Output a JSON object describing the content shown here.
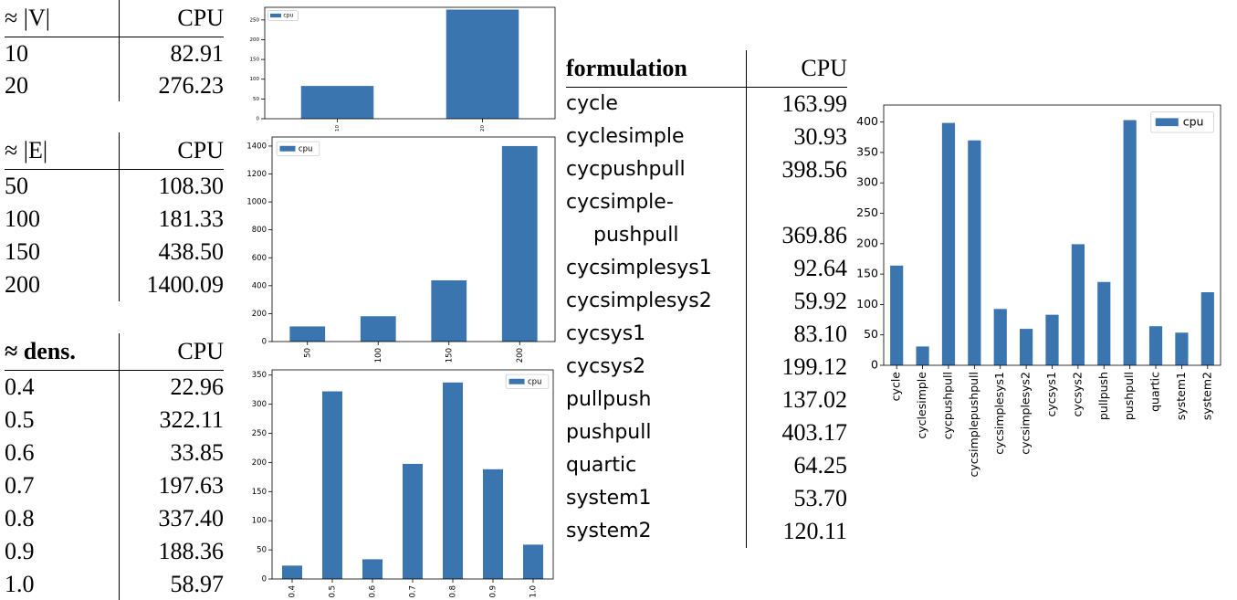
{
  "tables": [
    {
      "header": [
        "≈ |V|",
        "CPU"
      ],
      "rows": [
        [
          "10",
          "82.91"
        ],
        [
          "20",
          "276.23"
        ]
      ]
    },
    {
      "header": [
        "≈ |E|",
        "CPU"
      ],
      "rows": [
        [
          "50",
          "108.30"
        ],
        [
          "100",
          "181.33"
        ],
        [
          "150",
          "438.50"
        ],
        [
          "200",
          "1400.09"
        ]
      ]
    },
    {
      "header": [
        "≈ dens.",
        "CPU"
      ],
      "rows": [
        [
          "0.4",
          "22.96"
        ],
        [
          "0.5",
          "322.11"
        ],
        [
          "0.6",
          "33.85"
        ],
        [
          "0.7",
          "197.63"
        ],
        [
          "0.8",
          "337.40"
        ],
        [
          "0.9",
          "188.36"
        ],
        [
          "1.0",
          "58.97"
        ]
      ]
    },
    {
      "header": [
        "formulation",
        "CPU"
      ],
      "rows": [
        [
          "cycle",
          "163.99"
        ],
        [
          "cyclesimple",
          "30.93"
        ],
        [
          "cycpushpull",
          "398.56"
        ],
        [
          "cycsimple-pushpull",
          "369.86"
        ],
        [
          "cycsimplesys1",
          "92.64"
        ],
        [
          "cycsimplesys2",
          "59.92"
        ],
        [
          "cycsys1",
          "83.10"
        ],
        [
          "cycsys2",
          "199.12"
        ],
        [
          "pullpush",
          "137.02"
        ],
        [
          "pushpull",
          "403.17"
        ],
        [
          "quartic",
          "64.25"
        ],
        [
          "system1",
          "53.70"
        ],
        [
          "system2",
          "120.11"
        ]
      ]
    }
  ],
  "chart_data": [
    {
      "type": "bar",
      "categories": [
        "10",
        "20"
      ],
      "series": [
        {
          "name": "cpu",
          "color": "#3b75af",
          "values": [
            82.91,
            276.23
          ]
        }
      ],
      "ylim": [
        0,
        282
      ],
      "yticks": [
        0,
        50,
        100,
        150,
        200,
        250
      ],
      "legend": "upper left"
    },
    {
      "type": "bar",
      "categories": [
        "50",
        "100",
        "150",
        "200"
      ],
      "series": [
        {
          "name": "cpu",
          "color": "#3b75af",
          "values": [
            108.3,
            181.33,
            438.5,
            1400.09
          ]
        }
      ],
      "ylim": [
        0,
        1465
      ],
      "yticks": [
        0,
        200,
        400,
        600,
        800,
        1000,
        1200,
        1400
      ],
      "legend": "upper left"
    },
    {
      "type": "bar",
      "categories": [
        "0.4",
        "0.5",
        "0.6",
        "0.7",
        "0.8",
        "0.9",
        "1.0"
      ],
      "series": [
        {
          "name": "cpu",
          "color": "#3b75af",
          "values": [
            22.96,
            322.11,
            33.85,
            197.63,
            337.4,
            188.36,
            58.97
          ]
        }
      ],
      "ylim": [
        0,
        359
      ],
      "yticks": [
        0,
        50,
        100,
        150,
        200,
        250,
        300,
        350
      ],
      "legend": "upper right"
    },
    {
      "type": "bar",
      "categories": [
        "cycle",
        "cyclesimple",
        "cycpushpull",
        "cycsimplepushpull",
        "cycsimplesys1",
        "cycsimplesys2",
        "cycsys1",
        "cycsys2",
        "pullpush",
        "pushpull",
        "quartic",
        "system1",
        "system2"
      ],
      "series": [
        {
          "name": "cpu",
          "color": "#3b75af",
          "values": [
            163.99,
            30.93,
            398.56,
            369.86,
            92.64,
            59.92,
            83.1,
            199.12,
            137.02,
            403.17,
            64.25,
            53.7,
            120.11
          ]
        }
      ],
      "ylim": [
        0,
        428
      ],
      "yticks": [
        0,
        50,
        100,
        150,
        200,
        250,
        300,
        350,
        400
      ],
      "legend": "upper right"
    }
  ]
}
